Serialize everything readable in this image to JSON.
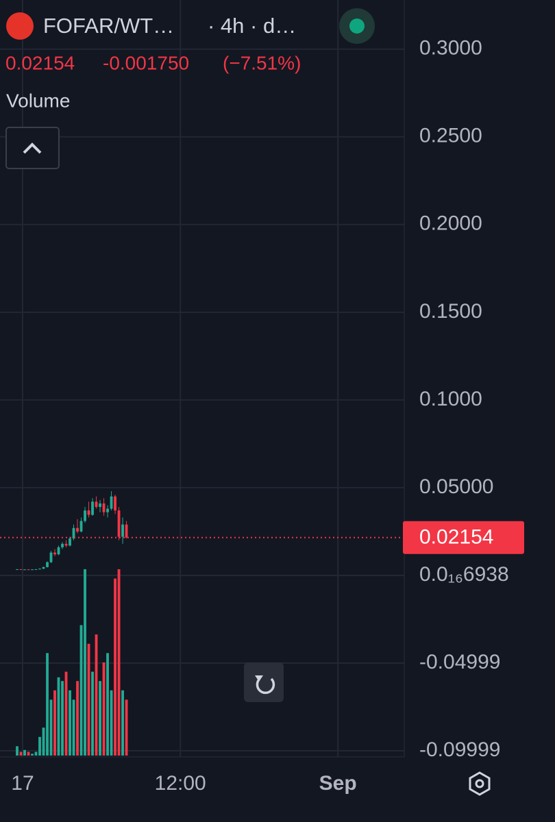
{
  "chart_data": {
    "type": "candlestick",
    "symbol": "FOFAR/WT…",
    "interval": "· 4h · d…",
    "indicator": "Volume",
    "last_price": 0.02154,
    "change": {
      "value": -0.00175,
      "label": "-0.001750"
    },
    "change_pct": {
      "value": -7.51,
      "label": "(−7.51%)"
    },
    "up_color": "#22ab94",
    "down_color": "#f23645",
    "x": [
      0,
      1,
      2,
      3,
      4,
      5,
      6,
      7,
      8,
      9,
      10,
      11,
      12,
      13,
      14,
      15,
      16,
      17,
      18,
      19,
      20,
      21,
      22,
      23,
      24,
      25,
      26,
      27,
      28,
      29
    ],
    "open": [
      0.0035,
      0.0035,
      0.0034,
      0.0034,
      0.0033,
      0.0034,
      0.0035,
      0.0038,
      0.0047,
      0.0075,
      0.013,
      0.012,
      0.016,
      0.018,
      0.017,
      0.021,
      0.027,
      0.025,
      0.031,
      0.037,
      0.0345,
      0.042,
      0.039,
      0.041,
      0.036,
      0.038,
      0.045,
      0.037,
      0.022,
      0.029
    ],
    "high": [
      0.0036,
      0.0036,
      0.0035,
      0.0035,
      0.0035,
      0.0036,
      0.004,
      0.005,
      0.008,
      0.014,
      0.015,
      0.017,
      0.019,
      0.02,
      0.022,
      0.029,
      0.032,
      0.033,
      0.039,
      0.042,
      0.044,
      0.045,
      0.043,
      0.044,
      0.04,
      0.048,
      0.046,
      0.039,
      0.033,
      0.031
    ],
    "low": [
      0.0034,
      0.0033,
      0.0033,
      0.0032,
      0.0032,
      0.0033,
      0.0034,
      0.0036,
      0.0045,
      0.007,
      0.011,
      0.0115,
      0.015,
      0.016,
      0.0165,
      0.02,
      0.024,
      0.0245,
      0.03,
      0.033,
      0.034,
      0.038,
      0.036,
      0.034,
      0.033,
      0.037,
      0.035,
      0.02,
      0.018,
      0.021
    ],
    "close": [
      0.0035,
      0.0034,
      0.0034,
      0.0033,
      0.0034,
      0.0035,
      0.0038,
      0.0047,
      0.0075,
      0.013,
      0.012,
      0.016,
      0.018,
      0.017,
      0.021,
      0.027,
      0.025,
      0.031,
      0.037,
      0.0345,
      0.042,
      0.039,
      0.041,
      0.036,
      0.038,
      0.045,
      0.037,
      0.022,
      0.029,
      0.02154
    ],
    "volume": [
      5,
      2,
      3,
      2,
      1,
      2,
      10,
      15,
      55,
      30,
      35,
      42,
      40,
      45,
      35,
      30,
      40,
      70,
      100,
      60,
      45,
      65,
      40,
      50,
      55,
      35,
      95,
      100,
      35,
      30
    ],
    "volume_lim": [
      0,
      100
    ],
    "ylim": [
      -0.1035,
      0.328
    ],
    "yticks": [
      {
        "value": 0.3,
        "label": "0.3000"
      },
      {
        "value": 0.25,
        "label": "0.2500"
      },
      {
        "value": 0.2,
        "label": "0.2000"
      },
      {
        "value": 0.15,
        "label": "0.1500"
      },
      {
        "value": 0.1,
        "label": "0.1000"
      },
      {
        "value": 0.05,
        "label": "0.05000"
      },
      {
        "value": 0,
        "label": "0.0₁₆6938"
      },
      {
        "value": -0.04999,
        "label": "-0.04999"
      },
      {
        "value": -0.09999,
        "label": "-0.09999"
      }
    ],
    "xlim": [
      -4.545,
      102.7
    ],
    "xticks": [
      {
        "value": 1.45,
        "label": "17"
      },
      {
        "value": 43.3,
        "label": "12:00"
      },
      {
        "value": 85.1,
        "label": "Sep"
      }
    ],
    "grid": true
  }
}
